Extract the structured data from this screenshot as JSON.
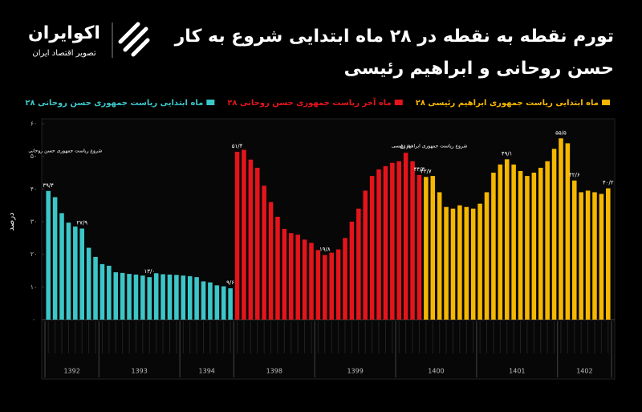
{
  "brand": {
    "name": "اکوایران",
    "tagline": "تصویر اقتصاد ایران"
  },
  "chart_data": {
    "type": "bar",
    "title": [
      "تورم نقطه به نقطه در ۲۸ ماه ابتدایی شروع به کار",
      "حسن روحانی و ابراهیم رئیسی"
    ],
    "ylabel": "درصد",
    "ylim": [
      0,
      60
    ],
    "yticks": [
      {
        "value": 0,
        "label": "۰"
      },
      {
        "value": 10,
        "label": "۱۰"
      },
      {
        "value": 20,
        "label": "۲۰"
      },
      {
        "value": 30,
        "label": "۳۰"
      },
      {
        "value": 40,
        "label": "۴۰"
      },
      {
        "value": 50,
        "label": "۵۰"
      },
      {
        "value": 60,
        "label": "۶۰"
      }
    ],
    "categories": [
      "1392",
      "1392",
      "1392",
      "1392",
      "1392",
      "1392",
      "1392",
      "1392",
      "1393",
      "1393",
      "1393",
      "1393",
      "1393",
      "1393",
      "1393",
      "1393",
      "1393",
      "1393",
      "1393",
      "1393",
      "1394",
      "1394",
      "1394",
      "1394",
      "1394",
      "1394",
      "1394",
      "1394",
      "1398",
      "1398",
      "1398",
      "1398",
      "1398",
      "1398",
      "1398",
      "1398",
      "1398",
      "1398",
      "1398",
      "1398",
      "1399",
      "1399",
      "1399",
      "1399",
      "1399",
      "1399",
      "1399",
      "1399",
      "1399",
      "1399",
      "1399",
      "1399",
      "1400",
      "1400",
      "1400",
      "1400",
      "1400",
      "1400",
      "1400",
      "1400",
      "1400",
      "1400",
      "1400",
      "1400",
      "1401",
      "1401",
      "1401",
      "1401",
      "1401",
      "1401",
      "1401",
      "1401",
      "1401",
      "1401",
      "1401",
      "1401",
      "1402",
      "1402",
      "1402",
      "1402",
      "1402",
      "1402",
      "1402",
      "1402"
    ],
    "series": [
      {
        "name": "۲۸ ماه ابتدایی ریاست جمهوری حسن روحانی",
        "color": "#3cc6c8",
        "values": [
          39.4,
          37.5,
          32.6,
          29.7,
          28.5,
          27.9,
          22.0,
          19.2,
          17.0,
          16.5,
          14.5,
          14.3,
          14.0,
          13.8,
          13.5,
          13.0,
          14.2,
          13.9,
          13.8,
          13.7,
          13.5,
          13.3,
          13.0,
          11.7,
          11.4,
          10.5,
          10.2,
          9.6,
          null,
          null,
          null,
          null,
          null,
          null,
          null,
          null,
          null,
          null,
          null,
          null,
          null,
          null,
          null,
          null,
          null,
          null,
          null,
          null,
          null,
          null,
          null,
          null,
          null,
          null,
          null,
          null,
          null,
          null,
          null,
          null,
          null,
          null,
          null,
          null,
          null,
          null,
          null,
          null,
          null,
          null,
          null,
          null,
          null,
          null,
          null,
          null,
          null,
          null,
          null,
          null,
          null,
          null,
          null,
          null
        ],
        "value_labels": [
          "۳۹/۴",
          null,
          null,
          null,
          null,
          "۲۷/۹",
          null,
          null,
          null,
          null,
          null,
          null,
          null,
          null,
          null,
          "۱۳/۰",
          null,
          null,
          null,
          null,
          null,
          null,
          null,
          null,
          null,
          null,
          null,
          "۹/۶",
          null,
          null,
          null,
          null,
          null,
          null,
          null,
          null,
          null,
          null,
          null,
          null,
          null,
          null,
          null,
          null,
          null,
          null,
          null,
          null,
          null,
          null,
          null,
          null,
          null,
          null,
          null,
          null,
          null,
          null,
          null,
          null,
          null,
          null,
          null,
          null,
          null,
          null,
          null,
          null,
          null,
          null,
          null,
          null,
          null,
          null,
          null,
          null,
          null,
          null,
          null,
          null,
          null,
          null,
          null,
          null
        ]
      },
      {
        "name": "۲۸ ماه آخر ریاست جمهوری حسن روحانی",
        "color": "#e5141b",
        "values": [
          null,
          null,
          null,
          null,
          null,
          null,
          null,
          null,
          null,
          null,
          null,
          null,
          null,
          null,
          null,
          null,
          null,
          null,
          null,
          null,
          null,
          null,
          null,
          null,
          null,
          null,
          null,
          null,
          51.4,
          52.0,
          49.0,
          46.5,
          41.0,
          36.0,
          31.5,
          27.8,
          26.5,
          26.0,
          24.5,
          23.5,
          21.3,
          19.8,
          20.5,
          21.5,
          25.0,
          30.0,
          34.0,
          39.5,
          44.0,
          46.0,
          47.0,
          48.0,
          48.5,
          51.1,
          48.5,
          44.3,
          null,
          null,
          null,
          null,
          null,
          null,
          null,
          null,
          null,
          null,
          null,
          null,
          null,
          null,
          null,
          null,
          null,
          null,
          null,
          null,
          null,
          null,
          null,
          null,
          null,
          null,
          null,
          null
        ],
        "value_labels": [
          null,
          null,
          null,
          null,
          null,
          null,
          null,
          null,
          null,
          null,
          null,
          null,
          null,
          null,
          null,
          null,
          null,
          null,
          null,
          null,
          null,
          null,
          null,
          null,
          null,
          null,
          null,
          null,
          "۵۱/۴",
          null,
          null,
          null,
          null,
          null,
          null,
          null,
          null,
          null,
          null,
          null,
          null,
          "۱۹/۸",
          null,
          null,
          null,
          null,
          null,
          null,
          null,
          null,
          null,
          null,
          null,
          "۵۱/۱",
          null,
          "۴۴/۳",
          null,
          null,
          null,
          null,
          null,
          null,
          null,
          null,
          null,
          null,
          null,
          null,
          null,
          null,
          null,
          null,
          null,
          null,
          null,
          null,
          null,
          null,
          null,
          null,
          null,
          null,
          null,
          null
        ]
      },
      {
        "name": "۲۸ ماه ابتدایی ریاست جمهوری ابراهیم رئیسی",
        "color": "#f5b700",
        "values": [
          null,
          null,
          null,
          null,
          null,
          null,
          null,
          null,
          null,
          null,
          null,
          null,
          null,
          null,
          null,
          null,
          null,
          null,
          null,
          null,
          null,
          null,
          null,
          null,
          null,
          null,
          null,
          null,
          null,
          null,
          null,
          null,
          null,
          null,
          null,
          null,
          null,
          null,
          null,
          null,
          null,
          null,
          null,
          null,
          null,
          null,
          null,
          null,
          null,
          null,
          null,
          null,
          null,
          null,
          null,
          null,
          43.7,
          44.0,
          39.0,
          34.5,
          34.0,
          35.0,
          34.5,
          34.0,
          35.5,
          39.0,
          45.0,
          47.5,
          49.1,
          47.5,
          45.5,
          44.0,
          45.0,
          46.5,
          48.5,
          52.3,
          55.5,
          54.0,
          42.6,
          39.0,
          39.5,
          39.0,
          38.5,
          40.2
        ],
        "value_labels": [
          null,
          null,
          null,
          null,
          null,
          null,
          null,
          null,
          null,
          null,
          null,
          null,
          null,
          null,
          null,
          null,
          null,
          null,
          null,
          null,
          null,
          null,
          null,
          null,
          null,
          null,
          null,
          null,
          null,
          null,
          null,
          null,
          null,
          null,
          null,
          null,
          null,
          null,
          null,
          null,
          null,
          null,
          null,
          null,
          null,
          null,
          null,
          null,
          null,
          null,
          null,
          null,
          null,
          null,
          null,
          null,
          "۴۳/۷",
          null,
          null,
          null,
          null,
          null,
          null,
          null,
          null,
          null,
          null,
          null,
          "۴۹/۱",
          null,
          null,
          null,
          null,
          null,
          null,
          null,
          "۵۵/۵",
          null,
          "۴۲/۶",
          null,
          null,
          null,
          null,
          "۴۰/۲"
        ]
      }
    ],
    "annotations": [
      "شروع ریاست جمهوری حسن روحانی",
      "شروع ریاست جمهوری ابراهیم رئیسی"
    ],
    "grid": false
  }
}
